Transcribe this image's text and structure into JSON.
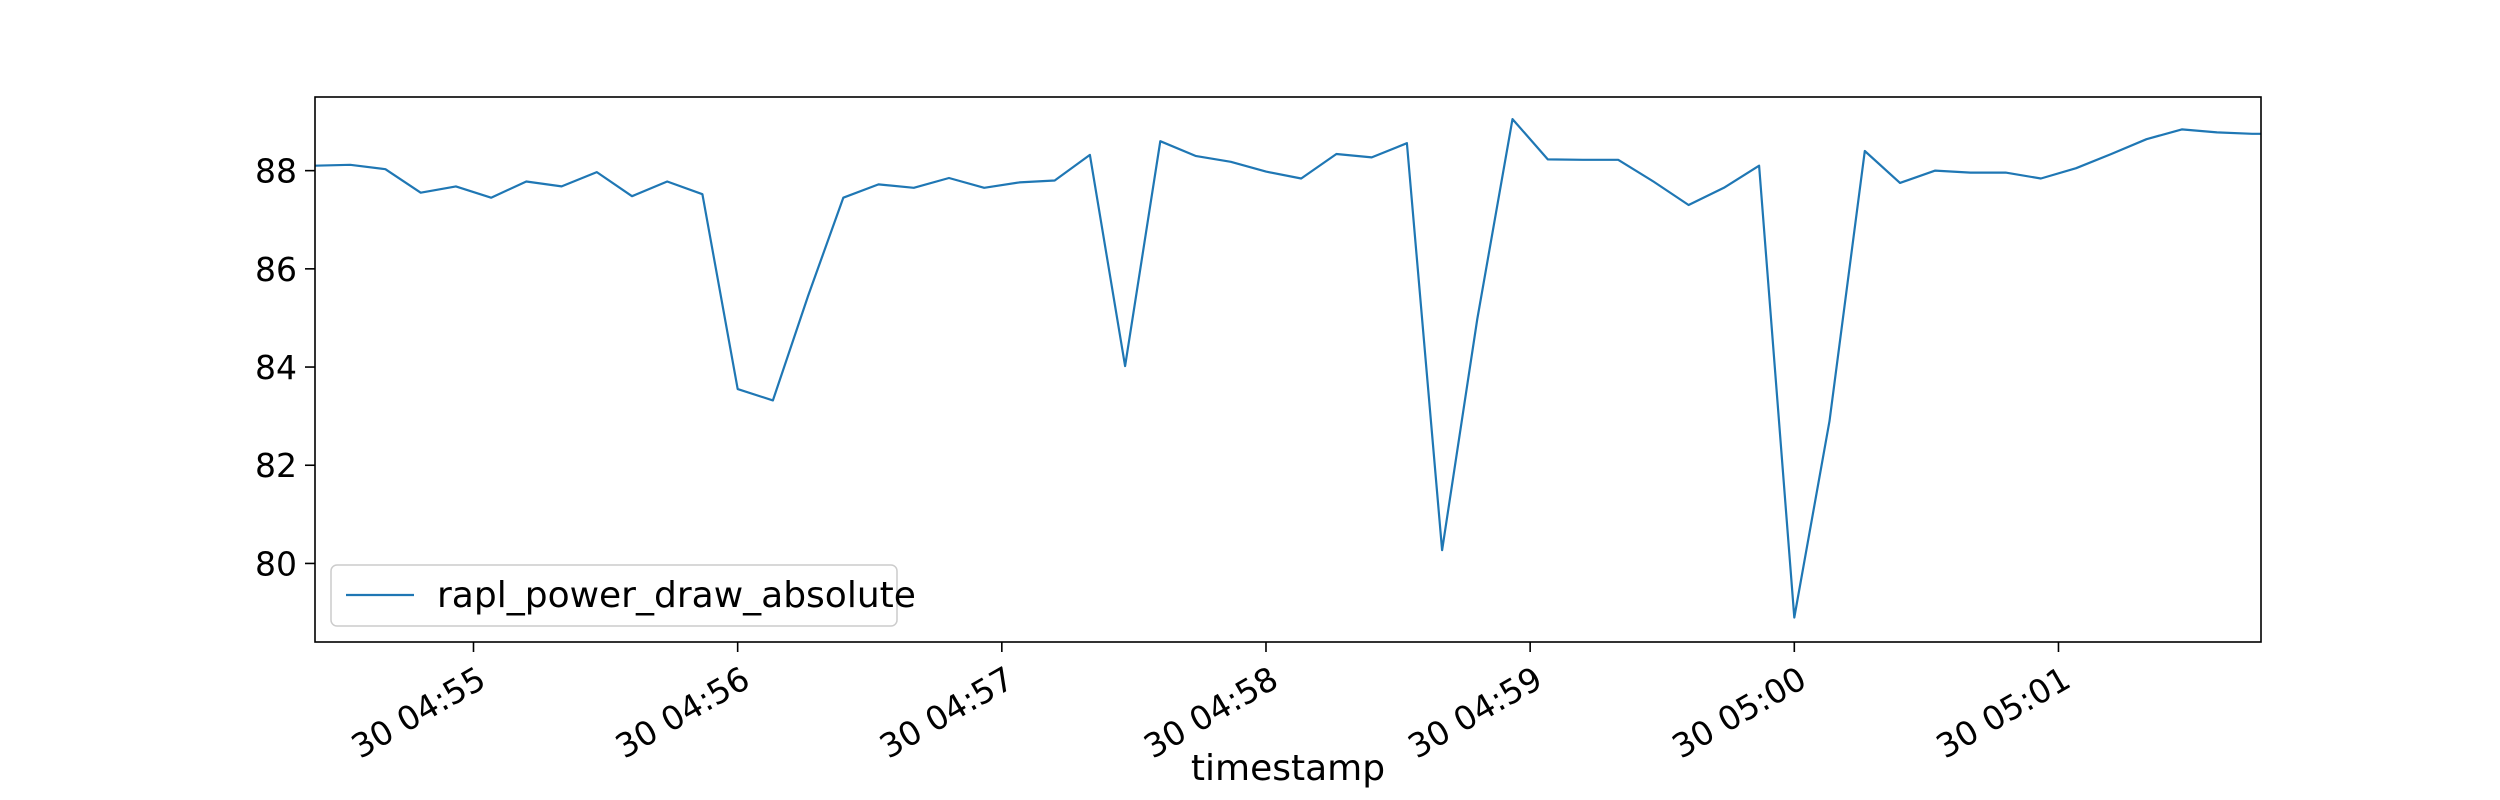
{
  "chart_data": {
    "type": "line",
    "title": "",
    "xlabel": "timestamp",
    "ylabel": "",
    "grid": false,
    "legend_position": "lower-left",
    "colors": {
      "series": "#1f77b4",
      "axes": "#000000",
      "background": "#ffffff"
    },
    "x_ticks": [
      {
        "t": "04:55:00",
        "label": "30 04:55"
      },
      {
        "t": "04:56:00",
        "label": "30 04:56"
      },
      {
        "t": "04:57:00",
        "label": "30 04:57"
      },
      {
        "t": "04:58:00",
        "label": "30 04:58"
      },
      {
        "t": "04:59:00",
        "label": "30 04:59"
      },
      {
        "t": "05:00:00",
        "label": "30 05:00"
      },
      {
        "t": "05:01:00",
        "label": "30 05:01"
      }
    ],
    "y_ticks": [
      80,
      82,
      84,
      86,
      88
    ],
    "xlim": [
      "04:54:24",
      "05:01:46"
    ],
    "ylim": [
      78.4,
      89.5
    ],
    "series": [
      {
        "name": "rapl_power_draw_absolute",
        "x": [
          "04:54:24",
          "04:54:32",
          "04:54:40",
          "04:54:48",
          "04:54:56",
          "04:55:04",
          "04:55:12",
          "04:55:20",
          "04:55:28",
          "04:55:36",
          "04:55:44",
          "04:55:52",
          "04:56:00",
          "04:56:08",
          "04:56:16",
          "04:56:24",
          "04:56:32",
          "04:56:40",
          "04:56:48",
          "04:56:56",
          "04:57:04",
          "04:57:12",
          "04:57:20",
          "04:57:28",
          "04:57:36",
          "04:57:44",
          "04:57:52",
          "04:58:00",
          "04:58:08",
          "04:58:16",
          "04:58:24",
          "04:58:32",
          "04:58:40",
          "04:58:48",
          "04:58:56",
          "04:59:04",
          "04:59:12",
          "04:59:20",
          "04:59:28",
          "04:59:36",
          "04:59:44",
          "04:59:52",
          "05:00:00",
          "05:00:08",
          "05:00:16",
          "05:00:24",
          "05:00:32",
          "05:00:40",
          "05:00:48",
          "05:00:56",
          "05:01:04",
          "05:01:12",
          "05:01:20",
          "05:01:28",
          "05:01:36",
          "05:01:44",
          "05:01:46"
        ],
        "y": [
          88.1,
          88.12,
          88.03,
          87.55,
          87.68,
          87.45,
          87.78,
          87.68,
          87.97,
          87.48,
          87.78,
          87.52,
          83.55,
          83.32,
          85.45,
          87.45,
          87.72,
          87.65,
          87.85,
          87.65,
          87.76,
          87.8,
          88.32,
          84.02,
          88.6,
          88.3,
          88.18,
          87.98,
          87.84,
          88.34,
          88.27,
          88.56,
          80.27,
          84.98,
          89.05,
          88.23,
          88.22,
          88.22,
          87.78,
          87.3,
          87.65,
          88.1,
          78.9,
          82.9,
          88.4,
          87.75,
          88.0,
          87.96,
          87.96,
          87.84,
          88.05,
          88.34,
          88.64,
          88.84,
          88.78,
          88.75,
          88.75
        ]
      }
    ]
  }
}
